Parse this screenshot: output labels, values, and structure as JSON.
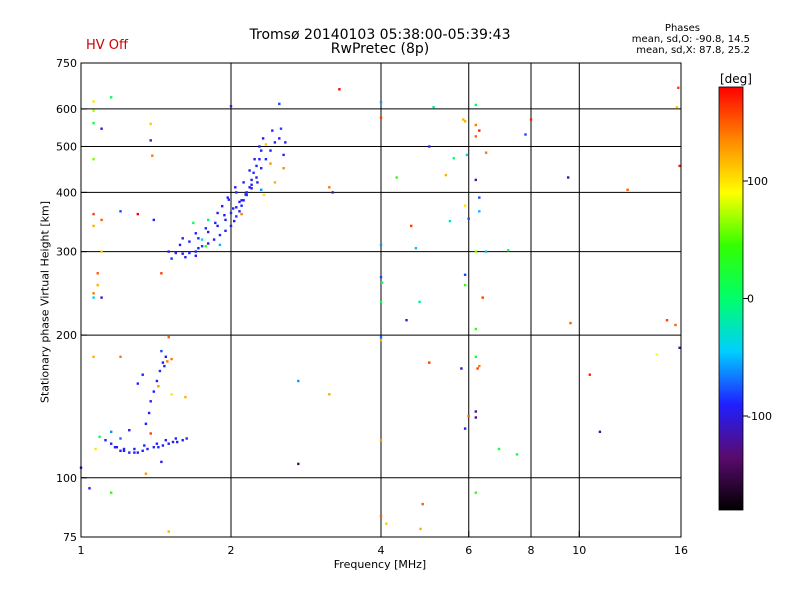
{
  "chart_data": {
    "type": "scatter",
    "title": "Tromsø 20140103 05:38:00-05:39:43",
    "subtitle": "RwPretec (8p)",
    "status": "HV Off",
    "status_color": "#cc0000",
    "xlabel": "Frequency [MHz]",
    "ylabel": "Stationary phase Virtual Height [km]",
    "x_scale": "log",
    "y_scale": "log",
    "xlim": [
      1,
      16
    ],
    "ylim": [
      75,
      750
    ],
    "xticks": [
      1,
      2,
      4,
      6,
      8,
      10,
      16
    ],
    "yticks": [
      75,
      100,
      200,
      300,
      400,
      500,
      600,
      750
    ],
    "x_gridlines": [
      2,
      4,
      6,
      8,
      10
    ],
    "y_gridlines": [
      100,
      200,
      300,
      400,
      500,
      600
    ],
    "grid": true,
    "phases": {
      "title": "Phases",
      "o_mode": "mean, sd,O: -90.8, 14.5",
      "x_mode": "mean, sd,X: 87.8, 25.2"
    },
    "colorbar": {
      "unit": "[deg]",
      "ticks": [
        100,
        0,
        -100
      ],
      "range": [
        -180,
        180
      ],
      "stops": [
        "#000000",
        "#5a0a6e",
        "#1f1fff",
        "#00cfff",
        "#00ff6a",
        "#33ff00",
        "#ffff00",
        "#ff8800",
        "#ff0000"
      ]
    },
    "series": [
      {
        "points": [
          [
            1.5,
            300,
            -95
          ],
          [
            1.55,
            298,
            -100
          ],
          [
            1.6,
            297,
            -92
          ],
          [
            1.65,
            298,
            -88
          ],
          [
            1.7,
            300,
            -95
          ],
          [
            1.72,
            305,
            -90
          ],
          [
            1.75,
            308,
            -85
          ],
          [
            1.8,
            312,
            -92
          ],
          [
            1.85,
            318,
            -95
          ],
          [
            1.9,
            325,
            -88
          ],
          [
            1.95,
            332,
            -90
          ],
          [
            2.0,
            340,
            -95
          ],
          [
            2.03,
            348,
            -92
          ],
          [
            2.05,
            356,
            -86
          ],
          [
            2.08,
            365,
            -95
          ],
          [
            2.1,
            375,
            -90
          ],
          [
            2.12,
            385,
            -92
          ],
          [
            2.15,
            395,
            -88
          ],
          [
            2.18,
            410,
            -95
          ],
          [
            2.2,
            425,
            -90
          ],
          [
            2.22,
            440,
            -85
          ],
          [
            2.25,
            455,
            -92
          ],
          [
            2.28,
            470,
            -90
          ],
          [
            2.3,
            490,
            -95
          ],
          [
            1.58,
            310,
            -90
          ],
          [
            1.65,
            315,
            -92
          ],
          [
            1.72,
            320,
            -88
          ],
          [
            1.8,
            330,
            -95
          ],
          [
            1.88,
            340,
            -90
          ],
          [
            1.95,
            350,
            -92
          ],
          [
            2.0,
            362,
            -88
          ],
          [
            2.05,
            372,
            -95
          ],
          [
            2.1,
            385,
            -90
          ],
          [
            2.15,
            400,
            -92
          ],
          [
            2.2,
            415,
            -90
          ],
          [
            2.25,
            430,
            -95
          ],
          [
            2.3,
            450,
            -88
          ],
          [
            2.35,
            470,
            -92
          ],
          [
            2.4,
            490,
            -90
          ],
          [
            2.45,
            510,
            -95
          ],
          [
            2.5,
            520,
            -90
          ],
          [
            1.6,
            320,
            -95
          ],
          [
            1.7,
            328,
            -90
          ],
          [
            1.78,
            336,
            -88
          ],
          [
            1.86,
            345,
            -92
          ],
          [
            1.94,
            358,
            -95
          ],
          [
            2.02,
            370,
            -90
          ],
          [
            2.08,
            382,
            -92
          ],
          [
            2.14,
            396,
            -88
          ],
          [
            2.2,
            408,
            -95
          ],
          [
            2.26,
            420,
            -90
          ],
          [
            1.97,
            390,
            -90
          ],
          [
            2.05,
            400,
            -88
          ],
          [
            2.12,
            420,
            -92
          ],
          [
            2.18,
            445,
            -90
          ],
          [
            2.23,
            470,
            -95
          ],
          [
            2.28,
            500,
            -90
          ],
          [
            2.32,
            520,
            -92
          ],
          [
            2.42,
            540,
            -88
          ],
          [
            2.55,
            480,
            -90
          ],
          [
            2.57,
            510,
            -92
          ],
          [
            1.88,
            362,
            -90
          ],
          [
            1.92,
            374,
            -92
          ],
          [
            1.98,
            386,
            -88
          ],
          [
            2.04,
            410,
            -95
          ],
          [
            1.68,
            345,
            10
          ],
          [
            1.8,
            350,
            -10
          ],
          [
            1.75,
            318,
            -40
          ],
          [
            1.78,
            308,
            40
          ],
          [
            1.9,
            310,
            -50
          ],
          [
            1.52,
            290,
            -88
          ],
          [
            1.62,
            292,
            -92
          ],
          [
            1.7,
            294,
            -90
          ],
          [
            2.4,
            460,
            130
          ],
          [
            2.35,
            505,
            110
          ],
          [
            2.1,
            360,
            140
          ],
          [
            2.45,
            420,
            120
          ],
          [
            2.55,
            450,
            135
          ],
          [
            2.3,
            405,
            -60
          ],
          [
            2.52,
            545,
            -80
          ],
          [
            2.33,
            395,
            100
          ],
          [
            1.12,
            120,
            -90
          ],
          [
            1.15,
            118,
            -95
          ],
          [
            1.18,
            116,
            -92
          ],
          [
            1.2,
            114,
            -90
          ],
          [
            1.22,
            114,
            -95
          ],
          [
            1.25,
            113,
            -88
          ],
          [
            1.28,
            113,
            -92
          ],
          [
            1.3,
            113,
            -95
          ],
          [
            1.33,
            114,
            -90
          ],
          [
            1.36,
            115,
            -92
          ],
          [
            1.4,
            116,
            -88
          ],
          [
            1.43,
            116,
            -95
          ],
          [
            1.46,
            117,
            -92
          ],
          [
            1.5,
            118,
            -90
          ],
          [
            1.53,
            119,
            -95
          ],
          [
            1.56,
            119,
            -90
          ],
          [
            1.6,
            120,
            -92
          ],
          [
            1.63,
            121,
            -88
          ],
          [
            1.17,
            116,
            -90
          ],
          [
            1.22,
            115,
            -92
          ],
          [
            1.28,
            115,
            -88
          ],
          [
            1.34,
            117,
            -95
          ],
          [
            1.42,
            118,
            -90
          ],
          [
            1.48,
            120,
            -92
          ],
          [
            1.55,
            121,
            -88
          ],
          [
            1.35,
            130,
            -90
          ],
          [
            1.37,
            137,
            -92
          ],
          [
            1.38,
            145,
            -95
          ],
          [
            1.4,
            152,
            -90
          ],
          [
            1.42,
            160,
            -92
          ],
          [
            1.44,
            168,
            -88
          ],
          [
            1.46,
            175,
            -95
          ],
          [
            1.48,
            180,
            -90
          ],
          [
            1.47,
            172,
            -92
          ],
          [
            1.49,
            176,
            140
          ],
          [
            1.3,
            158,
            -88
          ],
          [
            1.33,
            165,
            -90
          ],
          [
            1.45,
            185,
            -80
          ],
          [
            1.43,
            156,
            130
          ],
          [
            1.52,
            150,
            100
          ],
          [
            1.15,
            125,
            -60
          ],
          [
            1.2,
            121,
            -70
          ],
          [
            1.38,
            124,
            160
          ],
          [
            1.25,
            126,
            -100
          ],
          [
            1.45,
            108,
            -95
          ],
          [
            1.07,
            115,
            100
          ],
          [
            1.09,
            122,
            10
          ],
          [
            1.62,
            148,
            120
          ],
          [
            1.0,
            105,
            -100
          ],
          [
            1.04,
            95,
            -90
          ],
          [
            1.15,
            93,
            40
          ],
          [
            1.35,
            102,
            130
          ],
          [
            1.5,
            77,
            120
          ],
          [
            1.06,
            240,
            -40
          ],
          [
            1.06,
            245,
            140
          ],
          [
            1.08,
            255,
            120
          ],
          [
            1.08,
            270,
            150
          ],
          [
            1.1,
            300,
            110
          ],
          [
            1.06,
            360,
            160
          ],
          [
            1.06,
            470,
            60
          ],
          [
            1.06,
            560,
            20
          ],
          [
            1.06,
            595,
            70
          ],
          [
            1.1,
            545,
            -100
          ],
          [
            1.06,
            622,
            100
          ],
          [
            1.06,
            340,
            120
          ],
          [
            1.1,
            350,
            150
          ],
          [
            1.2,
            365,
            -80
          ],
          [
            1.15,
            635,
            10
          ],
          [
            1.38,
            558,
            110
          ],
          [
            1.38,
            515,
            -100
          ],
          [
            1.39,
            478,
            140
          ],
          [
            1.3,
            360,
            180
          ],
          [
            1.4,
            350,
            -90
          ],
          [
            1.45,
            270,
            160
          ],
          [
            1.5,
            198,
            150
          ],
          [
            1.52,
            178,
            140
          ],
          [
            1.06,
            180,
            120
          ],
          [
            1.2,
            180,
            140
          ],
          [
            1.1,
            240,
            -100
          ],
          [
            2.0,
            608,
            -100
          ],
          [
            2.5,
            615,
            -80
          ],
          [
            2.73,
            160,
            -60
          ],
          [
            2.73,
            107,
            -140
          ],
          [
            3.3,
            660,
            180
          ],
          [
            3.15,
            410,
            140
          ],
          [
            3.2,
            400,
            -110
          ],
          [
            3.15,
            150,
            120
          ],
          [
            4.0,
            620,
            -60
          ],
          [
            4.0,
            575,
            160
          ],
          [
            4.0,
            310,
            -60
          ],
          [
            4.0,
            265,
            -80
          ],
          [
            4.02,
            258,
            0
          ],
          [
            4.0,
            235,
            10
          ],
          [
            4.0,
            198,
            -70
          ],
          [
            4.0,
            195,
            120
          ],
          [
            4.0,
            120,
            130
          ],
          [
            4.0,
            83,
            150
          ],
          [
            4.1,
            80,
            110
          ],
          [
            4.3,
            430,
            40
          ],
          [
            4.5,
            215,
            -100
          ],
          [
            4.6,
            340,
            160
          ],
          [
            4.7,
            305,
            -50
          ],
          [
            4.78,
            235,
            -20
          ],
          [
            4.8,
            78,
            120
          ],
          [
            4.85,
            88,
            150
          ],
          [
            5.0,
            500,
            -90
          ],
          [
            5.0,
            175,
            160
          ],
          [
            5.1,
            605,
            -20
          ],
          [
            5.4,
            435,
            120
          ],
          [
            5.5,
            348,
            -30
          ],
          [
            5.6,
            472,
            0
          ],
          [
            5.85,
            570,
            120
          ],
          [
            5.95,
            480,
            -40
          ],
          [
            5.9,
            375,
            100
          ],
          [
            6.0,
            352,
            -80
          ],
          [
            5.9,
            268,
            -80
          ],
          [
            5.9,
            255,
            40
          ],
          [
            5.8,
            170,
            -110
          ],
          [
            6.0,
            135,
            150
          ],
          [
            5.9,
            127,
            -100
          ],
          [
            5.9,
            565,
            120
          ],
          [
            6.2,
            555,
            140
          ],
          [
            6.2,
            525,
            150
          ],
          [
            6.3,
            540,
            170
          ],
          [
            6.2,
            425,
            -120
          ],
          [
            6.3,
            390,
            -80
          ],
          [
            6.3,
            365,
            -50
          ],
          [
            6.2,
            300,
            60
          ],
          [
            6.4,
            240,
            160
          ],
          [
            6.2,
            206,
            40
          ],
          [
            6.2,
            180,
            20
          ],
          [
            6.25,
            170,
            160
          ],
          [
            6.3,
            172,
            140
          ],
          [
            6.2,
            138,
            -120
          ],
          [
            6.2,
            134,
            -130
          ],
          [
            6.2,
            93,
            40
          ],
          [
            6.5,
            300,
            -50
          ],
          [
            6.5,
            485,
            140
          ],
          [
            6.2,
            612,
            10
          ],
          [
            6.9,
            115,
            20
          ],
          [
            7.5,
            112,
            20
          ],
          [
            7.2,
            302,
            20
          ],
          [
            7.8,
            530,
            -80
          ],
          [
            8.0,
            570,
            170
          ],
          [
            9.5,
            430,
            -120
          ],
          [
            9.6,
            212,
            150
          ],
          [
            10.5,
            165,
            170
          ],
          [
            11.0,
            125,
            -120
          ],
          [
            12.5,
            405,
            150
          ],
          [
            14.3,
            182,
            90
          ],
          [
            15.0,
            215,
            160
          ],
          [
            15.6,
            210,
            150
          ],
          [
            15.7,
            605,
            110
          ],
          [
            15.9,
            455,
            170
          ],
          [
            15.9,
            188,
            -120
          ],
          [
            15.8,
            665,
            160
          ]
        ]
      }
    ]
  }
}
